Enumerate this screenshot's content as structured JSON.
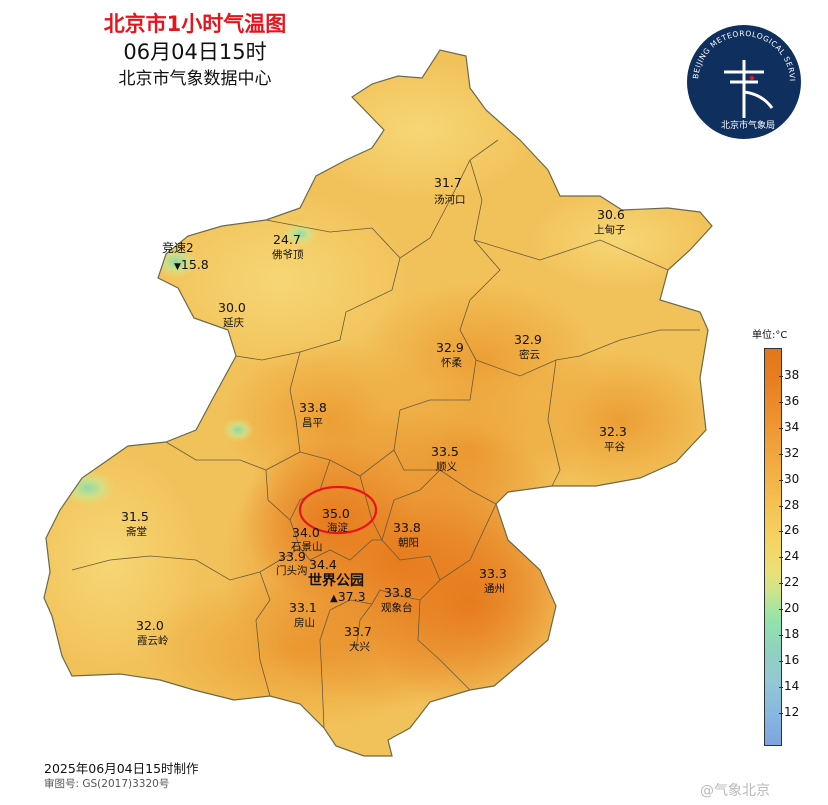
{
  "title": {
    "main": "北京市1小时气温图",
    "time": "06月04日15时",
    "source": "北京市气象数据中心"
  },
  "logo": {
    "ring_text": "BEIJING METEOROLOGICAL SERVICE",
    "cn_text": "北京市气象局",
    "bg_color": "#0f2f5e"
  },
  "stations": [
    {
      "name": "汤河口",
      "value": "31.7"
    },
    {
      "name": "上甸子",
      "value": "30.6"
    },
    {
      "name": "佛爷顶",
      "value": "24.7"
    },
    {
      "name": "竞速2",
      "value": "15.8"
    },
    {
      "name": "延庆",
      "value": "30.0"
    },
    {
      "name": "怀柔",
      "value": "32.9"
    },
    {
      "name": "密云",
      "value": "32.9"
    },
    {
      "name": "昌平",
      "value": "33.8"
    },
    {
      "name": "平谷",
      "value": "32.3"
    },
    {
      "name": "顺义",
      "value": "33.5"
    },
    {
      "name": "海淀",
      "value": "35.0"
    },
    {
      "name": "朝阳",
      "value": "33.8"
    },
    {
      "name": "斋堂",
      "value": "31.5"
    },
    {
      "name": "石景山",
      "value": "34.0"
    },
    {
      "name": "门头沟",
      "value": "33.9"
    },
    {
      "name": "",
      "value": "34.4"
    },
    {
      "name": "世界公园",
      "value": "37.3"
    },
    {
      "name": "观象台",
      "value": "33.8"
    },
    {
      "name": "通州",
      "value": "33.3"
    },
    {
      "name": "房山",
      "value": "33.1"
    },
    {
      "name": "霞云岭",
      "value": "32.0"
    },
    {
      "name": "大兴",
      "value": "33.7"
    }
  ],
  "highlight": {
    "station": "海淀",
    "color": "#e8141c"
  },
  "legend": {
    "unit": "单位:°C",
    "ticks": [
      "38",
      "36",
      "34",
      "32",
      "30",
      "28",
      "26",
      "24",
      "22",
      "20",
      "18",
      "16",
      "14",
      "12"
    ]
  },
  "footer": {
    "made": "2025年06月04日15时制作",
    "review": "审图号: GS(2017)3320号",
    "watermark": "@气象北京"
  }
}
